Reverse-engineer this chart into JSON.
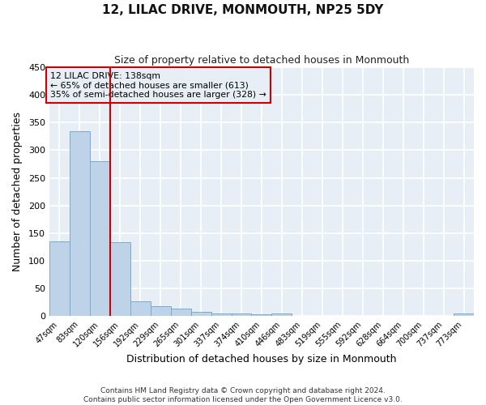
{
  "title": "12, LILAC DRIVE, MONMOUTH, NP25 5DY",
  "subtitle": "Size of property relative to detached houses in Monmouth",
  "xlabel": "Distribution of detached houses by size in Monmouth",
  "ylabel": "Number of detached properties",
  "bar_labels": [
    "47sqm",
    "83sqm",
    "120sqm",
    "156sqm",
    "192sqm",
    "229sqm",
    "265sqm",
    "301sqm",
    "337sqm",
    "374sqm",
    "410sqm",
    "446sqm",
    "483sqm",
    "519sqm",
    "555sqm",
    "592sqm",
    "628sqm",
    "664sqm",
    "700sqm",
    "737sqm",
    "773sqm"
  ],
  "bar_values": [
    135,
    335,
    280,
    133,
    27,
    18,
    13,
    7,
    5,
    5,
    3,
    5,
    0,
    0,
    0,
    0,
    0,
    0,
    0,
    0,
    5
  ],
  "bar_color": "#bed3e8",
  "bar_edge_color": "#7aaad0",
  "marker_color": "#cc0000",
  "annotation_lines": [
    "12 LILAC DRIVE: 138sqm",
    "← 65% of detached houses are smaller (613)",
    "35% of semi-detached houses are larger (328) →"
  ],
  "annotation_box_color": "#cc0000",
  "ylim": [
    0,
    450
  ],
  "yticks": [
    0,
    50,
    100,
    150,
    200,
    250,
    300,
    350,
    400,
    450
  ],
  "footer_lines": [
    "Contains HM Land Registry data © Crown copyright and database right 2024.",
    "Contains public sector information licensed under the Open Government Licence v3.0."
  ],
  "bg_color": "#ffffff",
  "plot_bg_color": "#e8eef5",
  "grid_color": "#ffffff"
}
